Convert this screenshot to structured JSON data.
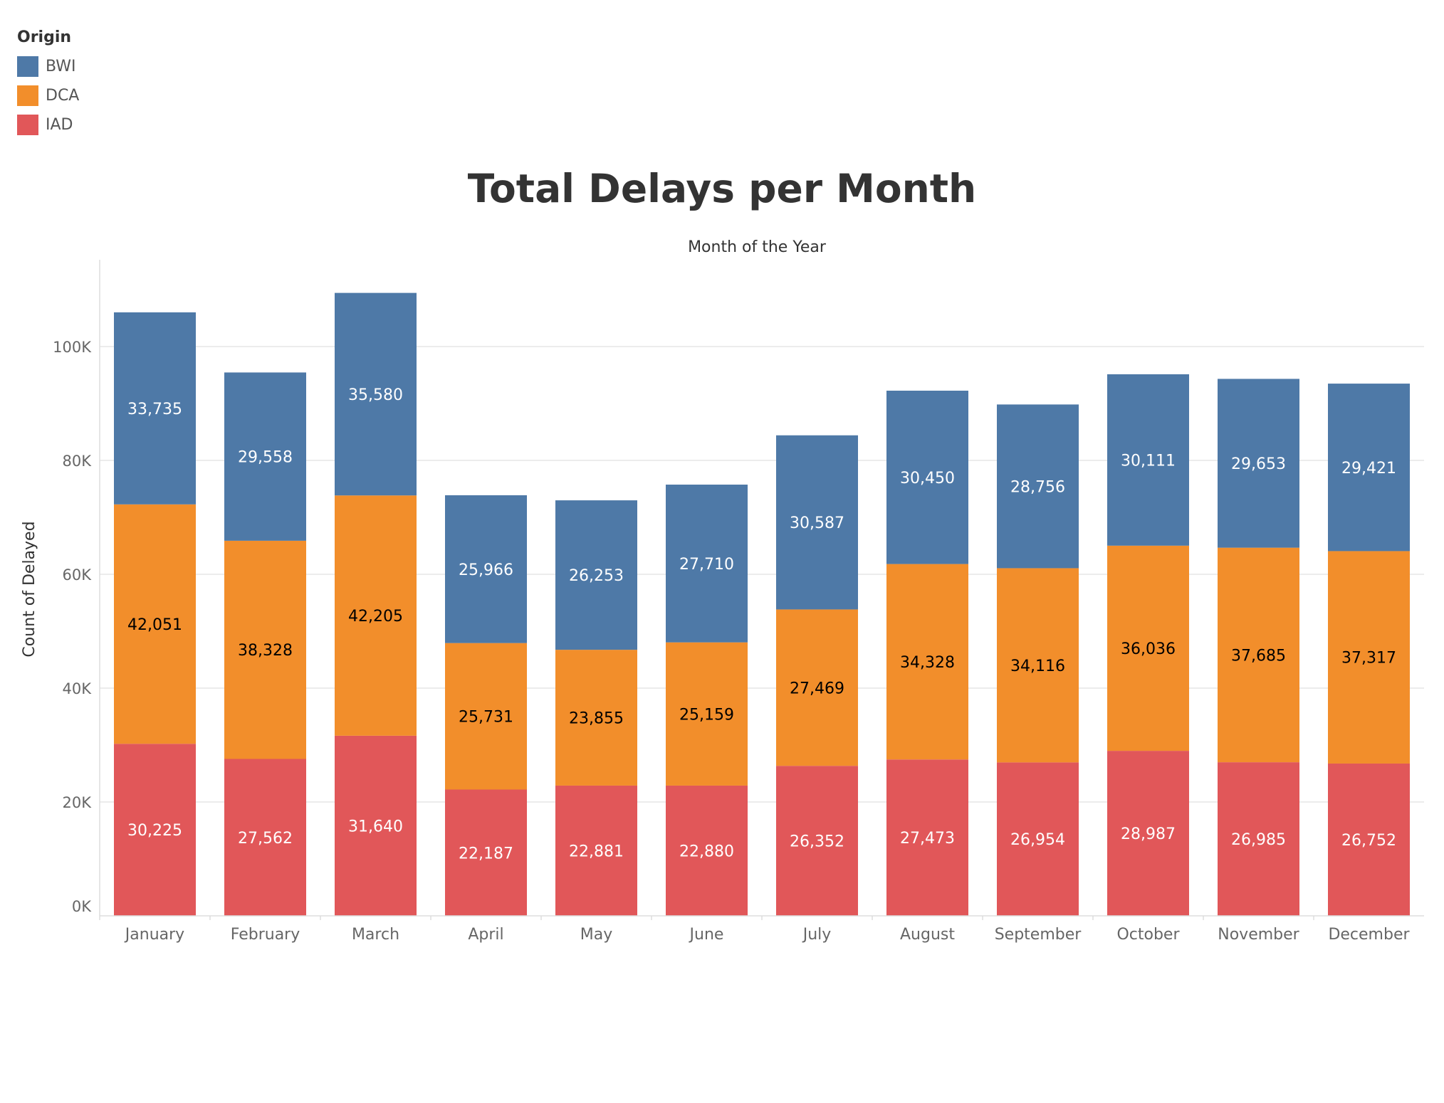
{
  "legend": {
    "title": "Origin",
    "items": [
      {
        "label": "BWI",
        "color": "#4e79a7"
      },
      {
        "label": "DCA",
        "color": "#f28e2b"
      },
      {
        "label": "IAD",
        "color": "#e15759"
      }
    ]
  },
  "chart_data": {
    "type": "bar",
    "stacked": true,
    "title": "Total Delays per Month",
    "xlabel": "Month of the Year",
    "ylabel": "Count of Delayed",
    "categories": [
      "January",
      "February",
      "March",
      "April",
      "May",
      "June",
      "July",
      "August",
      "September",
      "October",
      "November",
      "December"
    ],
    "series": [
      {
        "name": "IAD",
        "color": "#e15759",
        "label_color": "#ffffff",
        "values": [
          30225,
          27562,
          31640,
          22187,
          22881,
          22880,
          26352,
          27473,
          26954,
          28987,
          26985,
          26752
        ]
      },
      {
        "name": "DCA",
        "color": "#f28e2b",
        "label_color": "#000000",
        "values": [
          42051,
          38328,
          42205,
          25731,
          23855,
          25159,
          27469,
          34328,
          34116,
          36036,
          37685,
          37317
        ]
      },
      {
        "name": "BWI",
        "color": "#4e79a7",
        "label_color": "#ffffff",
        "values": [
          33735,
          29558,
          35580,
          25966,
          26253,
          27710,
          30587,
          30450,
          28756,
          30111,
          29653,
          29421
        ]
      }
    ],
    "yticks": [
      0,
      20000,
      40000,
      60000,
      80000,
      100000
    ],
    "ytick_labels": [
      "0K",
      "20K",
      "40K",
      "60K",
      "80K",
      "100K"
    ],
    "ylim": [
      0,
      115000
    ],
    "grid": true,
    "legend_position": "top-left"
  }
}
